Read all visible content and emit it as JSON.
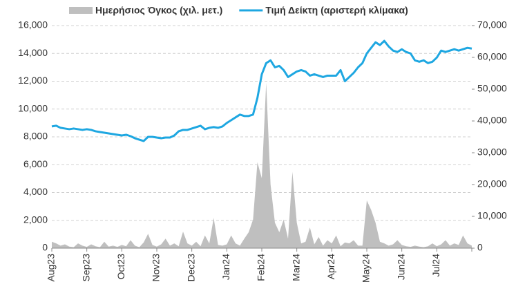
{
  "chart_data": {
    "type": "line-area",
    "categories": [
      "Aug23",
      null,
      null,
      null,
      null,
      null,
      null,
      null,
      "Sep23",
      null,
      null,
      null,
      null,
      null,
      null,
      null,
      "Oct23",
      null,
      null,
      null,
      null,
      null,
      null,
      null,
      "Nov23",
      null,
      null,
      null,
      null,
      null,
      null,
      null,
      "Dec23",
      null,
      null,
      null,
      null,
      null,
      null,
      null,
      "Jan24",
      null,
      null,
      null,
      null,
      null,
      null,
      null,
      "Feb24",
      null,
      null,
      null,
      null,
      null,
      null,
      null,
      "Mar24",
      null,
      null,
      null,
      null,
      null,
      null,
      null,
      "Apr24",
      null,
      null,
      null,
      null,
      null,
      null,
      null,
      "May24",
      null,
      null,
      null,
      null,
      null,
      null,
      null,
      "Jun24",
      null,
      null,
      null,
      null,
      null,
      null,
      null,
      "Jul24",
      null,
      null,
      null,
      null,
      null,
      null,
      null,
      null
    ],
    "series": [
      {
        "name": "Ημερήσιος Όγκος (χιλ. μετ.)",
        "color": "#bfbfbf",
        "axis": "y2",
        "values": [
          2000,
          1500,
          800,
          1200,
          500,
          300,
          1500,
          800,
          400,
          1200,
          600,
          300,
          2000,
          500,
          800,
          400,
          1000,
          600,
          2500,
          800,
          300,
          1800,
          4500,
          1000,
          500,
          1200,
          3000,
          800,
          1500,
          600,
          5200,
          1500,
          800,
          2000,
          600,
          4000,
          1500,
          9500,
          1000,
          800,
          1200,
          4000,
          1500,
          800,
          3000,
          5000,
          9000,
          27000,
          22000,
          52000,
          20000,
          8000,
          5000,
          9000,
          3000,
          24000,
          8000,
          1500,
          2000,
          6500,
          1200,
          3500,
          800,
          2500,
          1500,
          4000,
          600,
          1800,
          1500,
          2500,
          800,
          800,
          15000,
          12000,
          8000,
          2000,
          1500,
          800,
          1200,
          2500,
          1000,
          600,
          400,
          800,
          500,
          300,
          600,
          1500,
          600,
          1200,
          2500,
          800,
          1500,
          1000,
          4000,
          1500,
          800
        ]
      },
      {
        "name": "Τιμή Δείκτη (αριστερή κλίμακα)",
        "color": "#1ea7e1",
        "axis": "y",
        "values": [
          8750,
          8800,
          8650,
          8600,
          8550,
          8600,
          8550,
          8500,
          8550,
          8500,
          8400,
          8350,
          8300,
          8250,
          8200,
          8150,
          8100,
          8150,
          8050,
          7900,
          7800,
          7700,
          8000,
          8000,
          7950,
          7900,
          7950,
          7950,
          8100,
          8400,
          8500,
          8500,
          8600,
          8700,
          8800,
          8550,
          8650,
          8700,
          8650,
          8750,
          9000,
          9200,
          9400,
          9600,
          9500,
          9500,
          9600,
          10800,
          12500,
          13300,
          13500,
          13000,
          13100,
          12800,
          12300,
          12500,
          12700,
          12800,
          12700,
          12400,
          12500,
          12400,
          12300,
          12400,
          12400,
          12400,
          12800,
          12000,
          12300,
          12600,
          13000,
          13300,
          14000,
          14400,
          14800,
          14600,
          14900,
          14500,
          14200,
          14100,
          14300,
          14100,
          14000,
          13500,
          13400,
          13500,
          13300,
          13400,
          13700,
          14200,
          14100,
          14200,
          14300,
          14200,
          14300,
          14400,
          14350
        ]
      }
    ],
    "ylim": [
      0,
      16000
    ],
    "yticks": [
      0,
      {
        "value": 2000,
        "label": "2,000"
      },
      {
        "value": 4000,
        "label": "4,000"
      },
      {
        "value": 6000,
        "label": "6,000"
      },
      {
        "value": 8000,
        "label": "8,000"
      },
      {
        "value": 10000,
        "label": "10,000"
      },
      {
        "value": 12000,
        "label": "12,000"
      },
      {
        "value": 14000,
        "label": "14,000"
      },
      {
        "value": 16000,
        "label": "16,000"
      }
    ],
    "y2lim": [
      0,
      70000
    ],
    "y2ticks": [
      0,
      {
        "value": 10000,
        "label": "10,000"
      },
      {
        "value": 20000,
        "label": "20,000"
      },
      {
        "value": 30000,
        "label": "30,000"
      },
      {
        "value": 40000,
        "label": "40,000"
      },
      {
        "value": 50000,
        "label": "50,000"
      },
      {
        "value": 60000,
        "label": "60,000"
      },
      {
        "value": 70000,
        "label": "70,000"
      }
    ],
    "grid": true,
    "legend": "top"
  }
}
